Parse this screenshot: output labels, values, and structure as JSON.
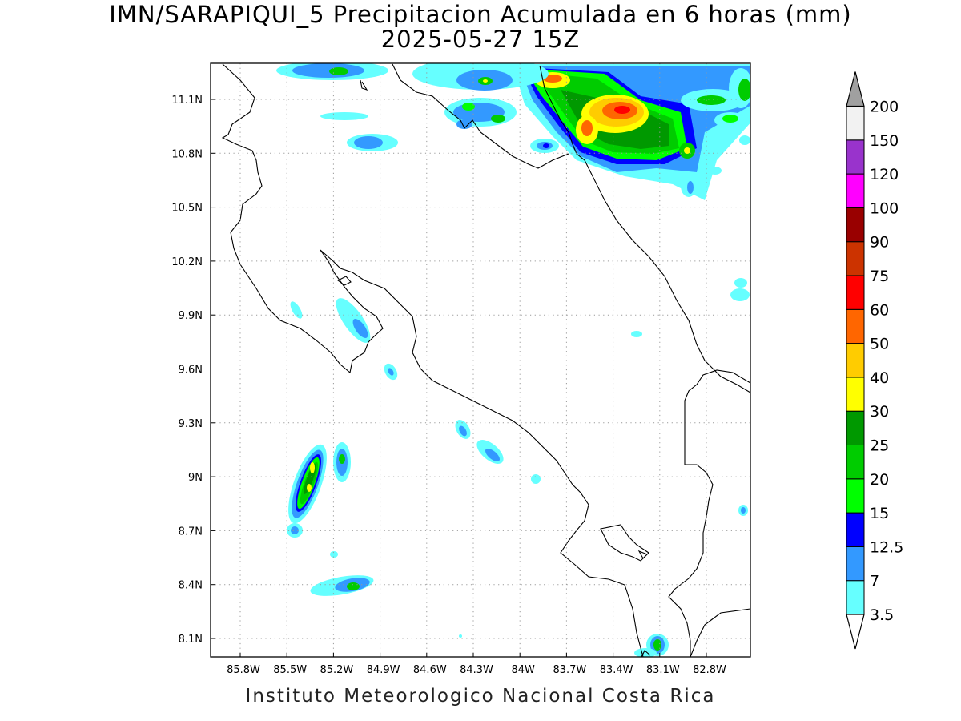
{
  "title": {
    "line1": "IMN/SARAPIQUI_5 Precipitacion Acumulada en 6 horas (mm)",
    "line2": "2025-05-27 15Z"
  },
  "footer": "Instituto Meteorologico Nacional Costa Rica",
  "map": {
    "lat_ticks": [
      "11.1N",
      "10.8N",
      "10.5N",
      "10.2N",
      "9.9N",
      "9.6N",
      "9.3N",
      "9N",
      "8.7N",
      "8.4N",
      "8.1N"
    ],
    "lon_ticks": [
      "85.8W",
      "85.5W",
      "85.2W",
      "84.9W",
      "84.6W",
      "84.3W",
      "84W",
      "83.7W",
      "83.4W",
      "83.1W",
      "82.8W"
    ],
    "grid": "dotted"
  },
  "colorbar": {
    "levels": [
      "3.5",
      "7",
      "12.5",
      "15",
      "20",
      "25",
      "30",
      "40",
      "50",
      "60",
      "75",
      "90",
      "100",
      "120",
      "150",
      "200"
    ],
    "colors": [
      "#66ffff",
      "#3399ff",
      "#0000ff",
      "#00ff00",
      "#00cc00",
      "#009900",
      "#ffff00",
      "#ffcc00",
      "#ff6600",
      "#ff0000",
      "#cc3300",
      "#990000",
      "#ff00ff",
      "#9933cc",
      "#f2f2f2"
    ],
    "top_arrow_color": "#a0a0a0"
  }
}
